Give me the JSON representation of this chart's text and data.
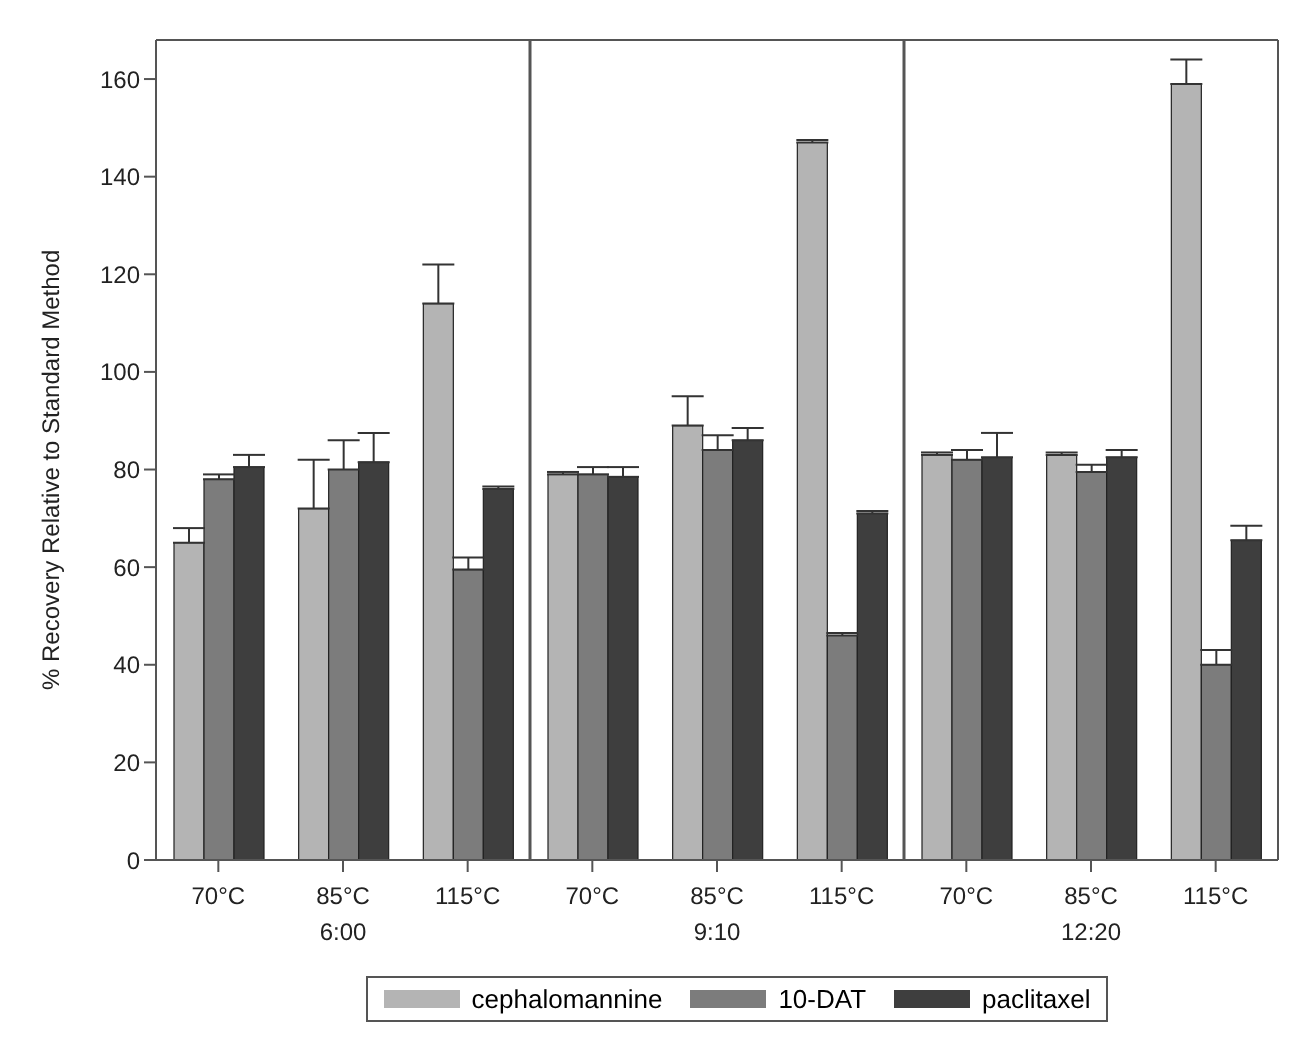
{
  "chart_data": {
    "type": "bar",
    "ylabel": "% Recovery Relative to Standard Method",
    "categories": [
      "70°C",
      "85°C",
      "115°C",
      "70°C",
      "85°C",
      "115°C",
      "70°C",
      "85°C",
      "115°C"
    ],
    "annotations": [
      "6:00",
      "9:10",
      "12:20"
    ],
    "series": [
      {
        "name": "cephalomannine",
        "color": "#b4b4b4",
        "values": [
          65,
          72,
          114,
          79,
          89,
          147,
          83,
          83,
          159
        ],
        "errors": [
          [
            65,
            68
          ],
          [
            72,
            82
          ],
          [
            114,
            122
          ],
          [
            79,
            79.5
          ],
          [
            89,
            95
          ],
          [
            147,
            147.5
          ],
          [
            83,
            83.5
          ],
          [
            83,
            83.5
          ],
          [
            159,
            164
          ]
        ]
      },
      {
        "name": "10-DAT",
        "color": "#7c7c7c",
        "values": [
          78,
          80,
          59.5,
          79,
          84,
          46,
          82,
          79.5,
          40
        ],
        "errors": [
          [
            78,
            79
          ],
          [
            80,
            86
          ],
          [
            59.5,
            62
          ],
          [
            79,
            80.5
          ],
          [
            84,
            87
          ],
          [
            46,
            46.5
          ],
          [
            82,
            84
          ],
          [
            79.5,
            81
          ],
          [
            40,
            43
          ]
        ]
      },
      {
        "name": "paclitaxel",
        "color": "#3e3e3e",
        "values": [
          80.5,
          81.5,
          76,
          78.5,
          86,
          71,
          82.5,
          82.5,
          65.5
        ],
        "errors": [
          [
            80.5,
            83
          ],
          [
            81.5,
            87.5
          ],
          [
            76,
            76.5
          ],
          [
            78.5,
            80.5
          ],
          [
            86,
            88.5
          ],
          [
            71,
            71.5
          ],
          [
            82.5,
            87.5
          ],
          [
            82.5,
            84
          ],
          [
            65.5,
            68.5
          ]
        ]
      }
    ],
    "ylim": [
      0,
      168
    ],
    "yticks": [
      0,
      20,
      40,
      60,
      80,
      100,
      120,
      140,
      160
    ],
    "legend": "bottom"
  }
}
